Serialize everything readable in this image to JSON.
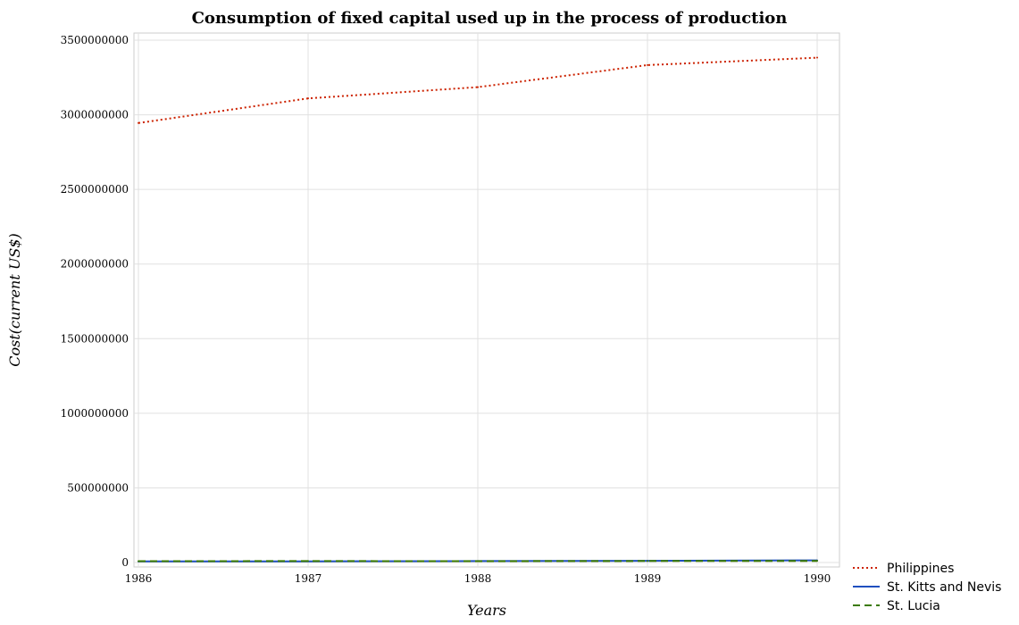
{
  "chart_data": {
    "type": "line",
    "title": "Consumption of fixed capital used up in the process of production",
    "xlabel": "Years",
    "ylabel": "Cost(current US$)",
    "categories": [
      "1986",
      "1987",
      "1988",
      "1989",
      "1990"
    ],
    "ylim": [
      0,
      3500000000
    ],
    "yticks": [
      0,
      500000000,
      1000000000,
      1500000000,
      2000000000,
      2500000000,
      3000000000,
      3500000000
    ],
    "ytick_labels": [
      "0",
      "500000000",
      "1000000000",
      "1500000000",
      "2000000000",
      "2500000000",
      "3000000000",
      "3500000000"
    ],
    "grid": true,
    "legend_position": "bottom-right",
    "series": [
      {
        "name": "Philippines",
        "color": "#cc2200",
        "dash": "dotted",
        "values": [
          2945000000,
          3110000000,
          3185000000,
          3333000000,
          3383000000
        ]
      },
      {
        "name": "St. Kitts and Nevis",
        "color": "#1f4fbf",
        "dash": "solid",
        "values": [
          7000000,
          8000000,
          9500000,
          11500000,
          14500000
        ]
      },
      {
        "name": "St. Lucia",
        "color": "#3a7a00",
        "dash": "dashed",
        "values": [
          9000000,
          9500000,
          9000000,
          10000000,
          11000000
        ]
      }
    ]
  }
}
